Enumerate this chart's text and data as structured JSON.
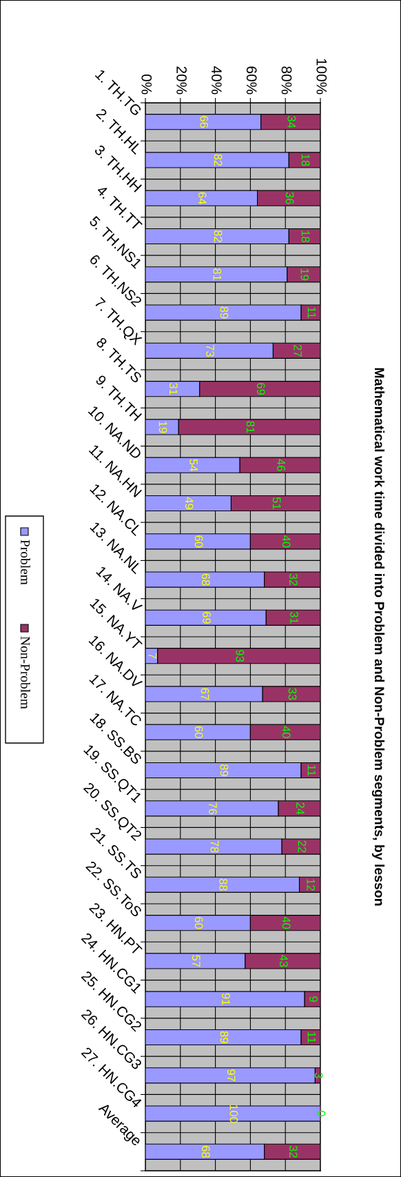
{
  "chart_data": {
    "type": "bar",
    "orientation": "horizontal",
    "stacked": true,
    "title": "Mathematical work time divided into Problem and Non-Problem segments, by lesson",
    "categories": [
      "1. TH.TG",
      "2. TH.HL",
      "3. TH.HH",
      "4. TH.TT",
      "5. TH.NS1",
      "6. TH.NS2",
      "7. TH.QX",
      "8. TH.TS",
      "9. TH.TH",
      "10. NA.ND",
      "11. NA.HN",
      "12. NA.CL",
      "13. NA.NL",
      "14. NA.V",
      "15. NA.YT",
      "16. NA.DV",
      "17. NA.TC",
      "18. SS.BS",
      "19. SS.QT1",
      "20. SS.QT2",
      "21. SS.TS",
      "22. SS.ToS",
      "23. HN.PT",
      "24. HN.CG1",
      "25. HN.CG2",
      "26. HN.CG3",
      "27. HN.CG4",
      "Average"
    ],
    "series": [
      {
        "name": "Problem",
        "color": "#9999ff",
        "values": [
          66,
          82,
          64,
          82,
          81,
          89,
          73,
          31,
          19,
          54,
          49,
          60,
          68,
          69,
          7,
          67,
          60,
          89,
          76,
          78,
          88,
          60,
          57,
          91,
          89,
          97,
          100,
          68
        ]
      },
      {
        "name": "Non-Problem",
        "color": "#993366",
        "values": [
          34,
          18,
          36,
          18,
          19,
          11,
          27,
          69,
          81,
          46,
          51,
          40,
          32,
          31,
          93,
          33,
          40,
          11,
          24,
          22,
          12,
          40,
          43,
          9,
          11,
          3,
          0,
          32
        ]
      }
    ],
    "xlim": [
      0,
      100
    ],
    "xticks": [
      {
        "value": 0,
        "label": "0%"
      },
      {
        "value": 20,
        "label": "20%"
      },
      {
        "value": 40,
        "label": "40%"
      },
      {
        "value": 60,
        "label": "60%"
      },
      {
        "value": 80,
        "label": "80%"
      },
      {
        "value": 100,
        "label": "100%"
      }
    ],
    "grid": true,
    "data_labels": true,
    "legend": "left"
  }
}
